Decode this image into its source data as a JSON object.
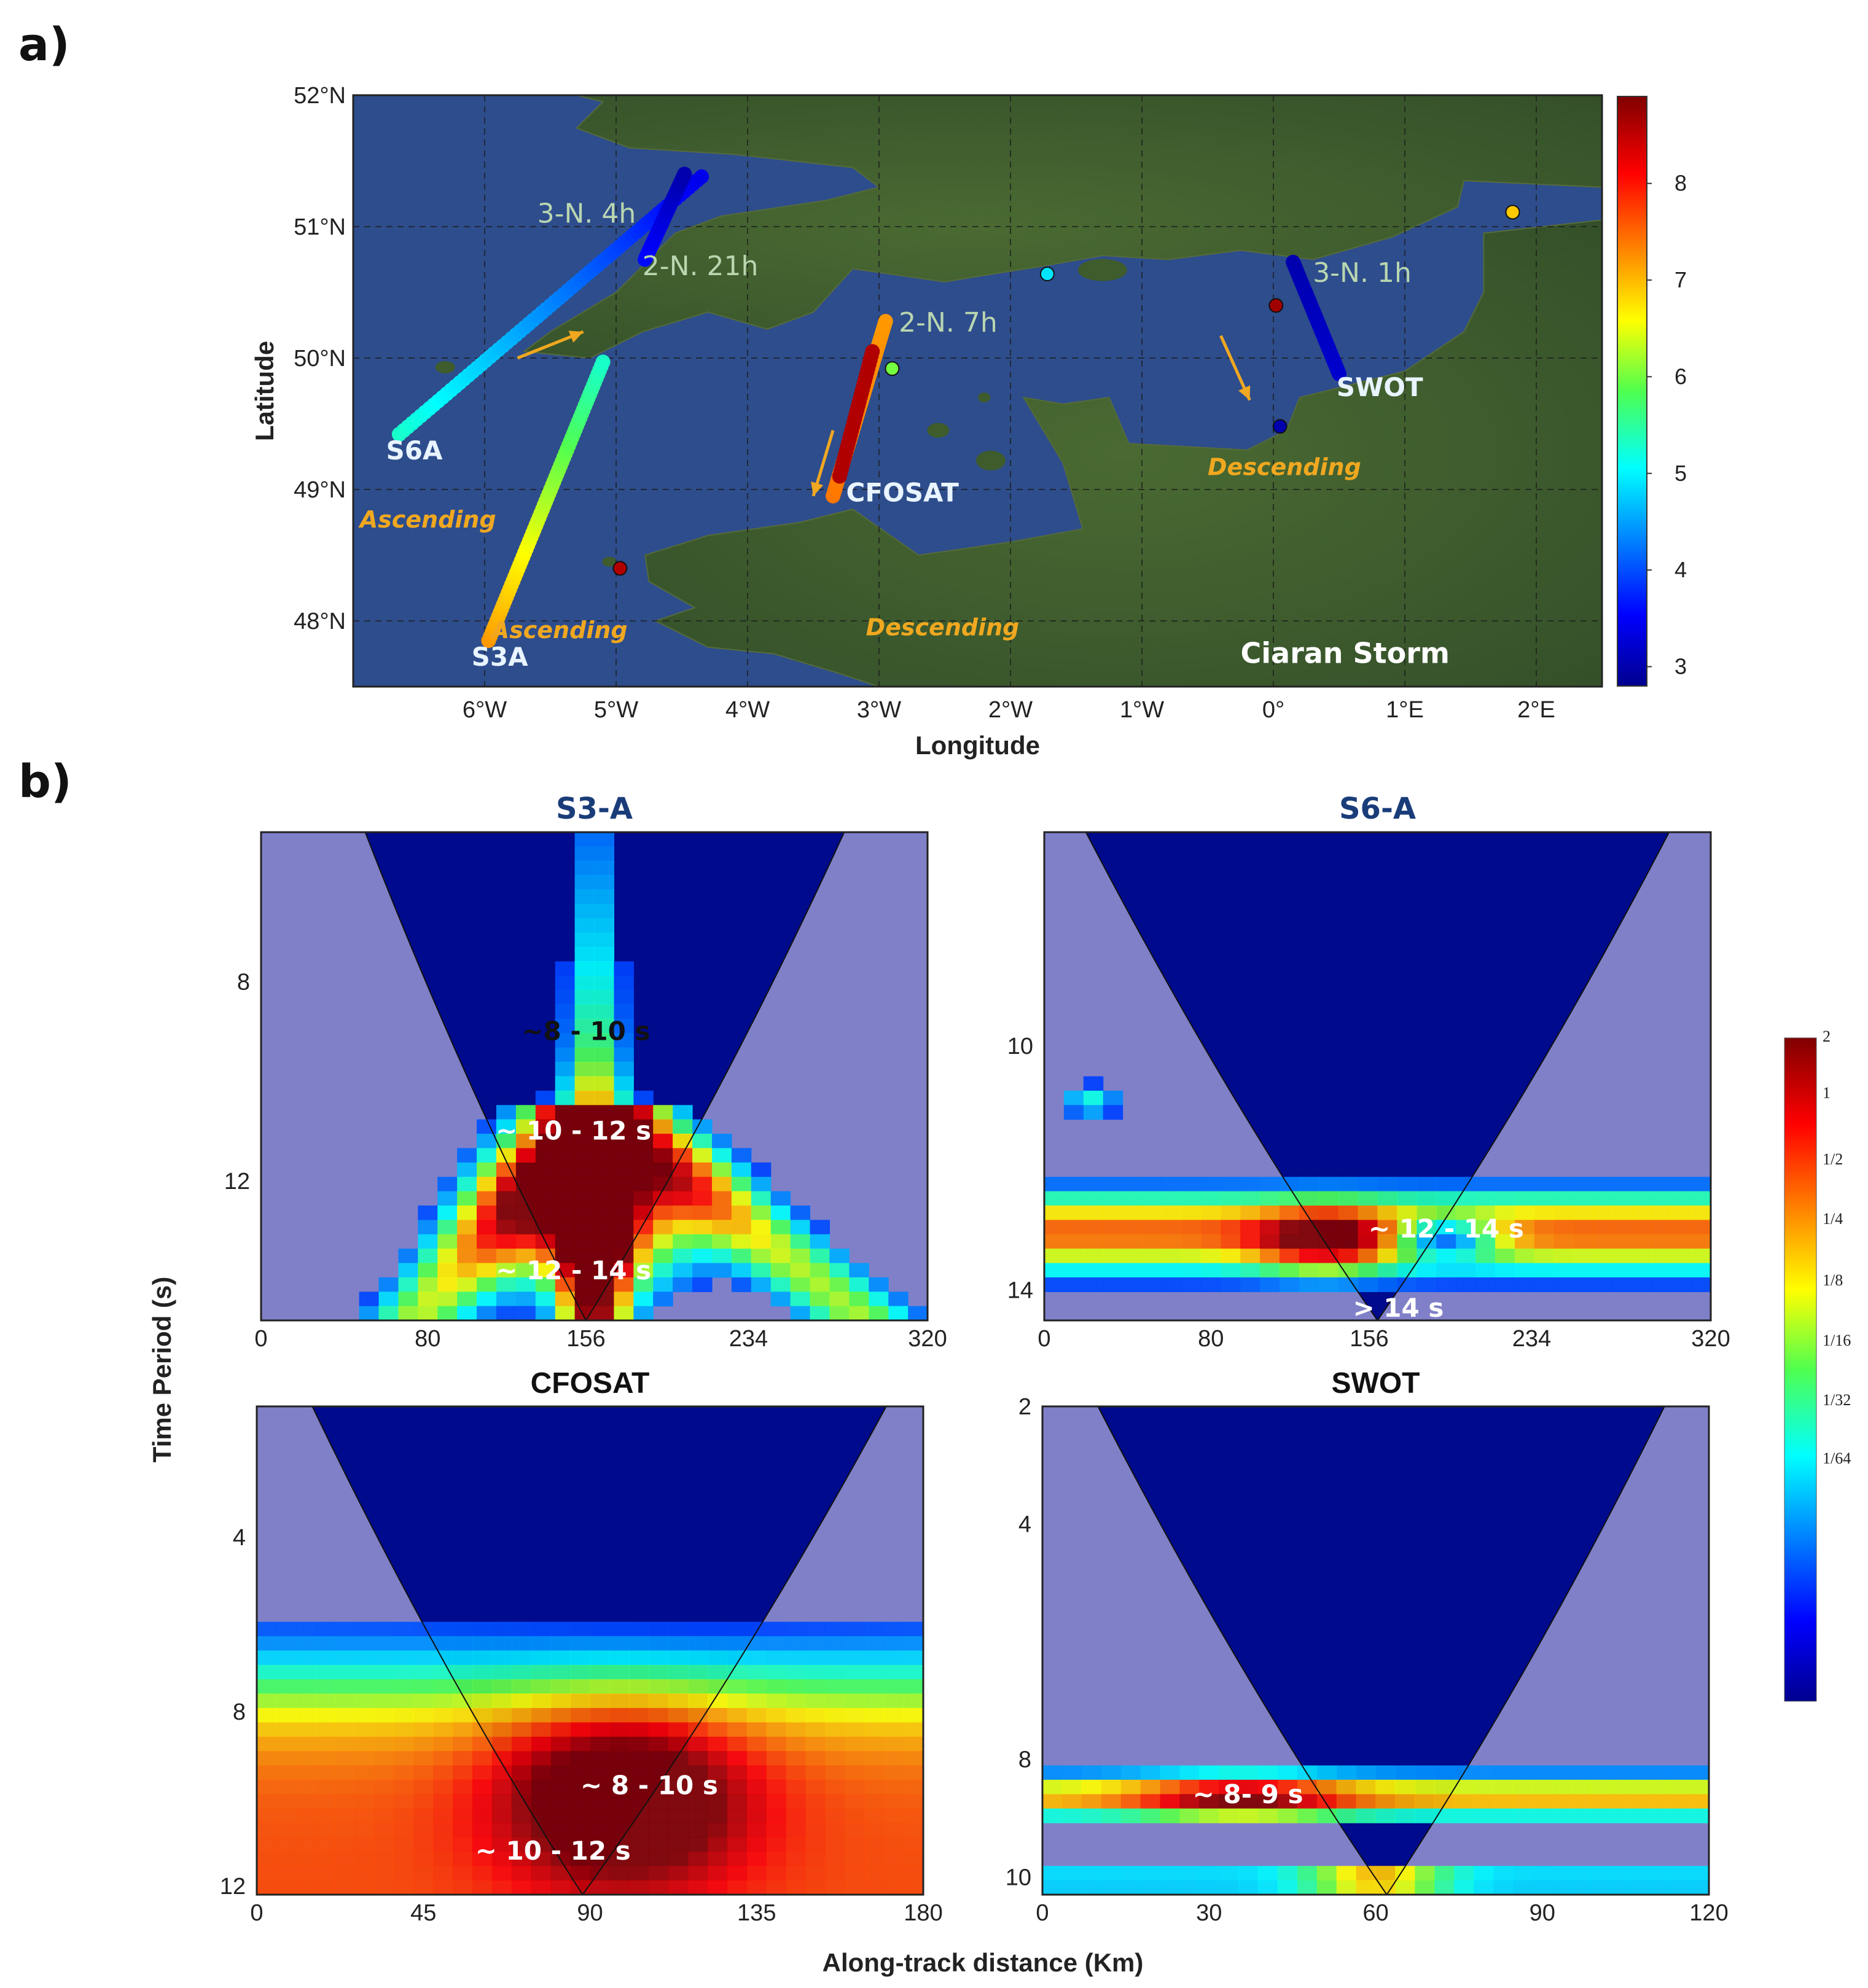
{
  "panel_a_letter": "a)",
  "panel_b_letter": "b)",
  "colors": {
    "ocean": "#2e4d8c",
    "land": "#3d5a2a",
    "wavelet_bg": "#8080c8",
    "coi_inside": "#000a8c",
    "arrow": "#f0a820"
  },
  "chart_data": [
    {
      "type": "scatter",
      "panel": "a",
      "xlabel": "Longitude",
      "ylabel": "Latitude",
      "xlim": [
        -7,
        2.5
      ],
      "ylim": [
        47.5,
        52
      ],
      "x_ticks": [
        {
          "v": -6,
          "t": "6°W"
        },
        {
          "v": -5,
          "t": "5°W"
        },
        {
          "v": -4,
          "t": "4°W"
        },
        {
          "v": -3,
          "t": "3°W"
        },
        {
          "v": -2,
          "t": "2°W"
        },
        {
          "v": -1,
          "t": "1°W"
        },
        {
          "v": 0,
          "t": "0°"
        },
        {
          "v": 1,
          "t": "1°E"
        },
        {
          "v": 2,
          "t": "2°E"
        }
      ],
      "y_ticks": [
        {
          "v": 48,
          "t": "48°N"
        },
        {
          "v": 49,
          "t": "49°N"
        },
        {
          "v": 50,
          "t": "50°N"
        },
        {
          "v": 51,
          "t": "51°N"
        },
        {
          "v": 52,
          "t": "52°N"
        }
      ],
      "grid": true,
      "colorbar": {
        "min": 2.8,
        "max": 8.9,
        "ticks": [
          3,
          4,
          5,
          6,
          7,
          8
        ]
      },
      "tracks": [
        {
          "name": "S6A",
          "start": [
            -6.65,
            49.42
          ],
          "end": [
            -4.35,
            51.38
          ],
          "v_start": 5.3,
          "v_end": 3.4
        },
        {
          "name": "2-N. 21h",
          "start": [
            -4.78,
            50.75
          ],
          "end": [
            -4.48,
            51.4
          ],
          "v_start": 3.6,
          "v_end": 3.0
        },
        {
          "name": "S3A",
          "start": [
            -5.97,
            47.85
          ],
          "end": [
            -5.1,
            49.97
          ],
          "v_start": 7.2,
          "v_end": 5.3
        },
        {
          "name": "CFOSAT",
          "start": [
            -3.35,
            48.95
          ],
          "end": [
            -2.95,
            50.28
          ],
          "v_start": 7.4,
          "v_end": 7.2
        },
        {
          "name": "SWOT",
          "start": [
            0.15,
            50.73
          ],
          "end": [
            0.5,
            49.88
          ],
          "v_start": 3.0,
          "v_end": 3.2
        }
      ],
      "red_segment": {
        "start": [
          -3.3,
          49.1
        ],
        "end": [
          -3.05,
          50.05
        ],
        "v": 8.6
      },
      "buoys": [
        {
          "x": -4.97,
          "y": 48.4,
          "v": 8.6
        },
        {
          "x": -2.9,
          "y": 49.92,
          "v": 6.0
        },
        {
          "x": -1.72,
          "y": 50.64,
          "v": 4.9
        },
        {
          "x": 0.02,
          "y": 50.4,
          "v": 8.7
        },
        {
          "x": 0.05,
          "y": 49.48,
          "v": 3.0
        },
        {
          "x": 1.82,
          "y": 51.11,
          "v": 6.9
        }
      ],
      "track_labels": [
        {
          "text": "S6A",
          "x": -6.75,
          "y": 49.3
        },
        {
          "text": "S3A",
          "x": -6.1,
          "y": 47.73
        },
        {
          "text": "CFOSAT",
          "x": -3.25,
          "y": 48.98
        },
        {
          "text": "SWOT",
          "x": 0.48,
          "y": 49.78
        }
      ],
      "pass_labels": [
        {
          "text": "3-N. 4h",
          "x": -5.6,
          "y": 51.1
        },
        {
          "text": "2-N. 21h",
          "x": -4.8,
          "y": 50.7
        },
        {
          "text": "2-N. 7h",
          "x": -2.85,
          "y": 50.27
        },
        {
          "text": "3-N. 1h",
          "x": 0.3,
          "y": 50.65
        }
      ],
      "direction_labels": [
        {
          "text": "Ascending",
          "x": -6.95,
          "y": 48.77
        },
        {
          "text": "Ascending",
          "x": -5.95,
          "y": 47.93
        },
        {
          "text": "Descending",
          "x": -3.1,
          "y": 47.95
        },
        {
          "text": "Descending",
          "x": -0.5,
          "y": 49.17
        }
      ],
      "storm_label": {
        "text": "Ciaran Storm",
        "x": -0.25,
        "y": 47.75
      }
    },
    {
      "type": "heatmap",
      "title": "S3-A",
      "xlim": [
        0,
        320
      ],
      "ylim": [
        5,
        14.8
      ],
      "x_ticks": [
        0,
        80,
        156,
        234,
        320
      ],
      "y_ticks": [
        8,
        12
      ],
      "coi": {
        "min_x": 156,
        "min_y": 14.8,
        "top_x_left": 50,
        "top_x_right": 280
      },
      "annotations": [
        {
          "text": "~8 - 10 s",
          "x": 156,
          "y": 9.0,
          "dark": true
        },
        {
          "text": "~ 10 - 12 s",
          "x": 150,
          "y": 11.0
        },
        {
          "text": "~ 12 - 14 s",
          "x": 150,
          "y": 13.8
        }
      ]
    },
    {
      "type": "heatmap",
      "title": "S6-A",
      "xlim": [
        0,
        320
      ],
      "ylim": [
        6.5,
        14.5
      ],
      "x_ticks": [
        0,
        80,
        156,
        234,
        320
      ],
      "y_ticks": [
        10,
        14
      ],
      "coi": {
        "min_x": 160,
        "min_y": 14.5,
        "top_x_left": 20,
        "top_x_right": 300
      },
      "annotations": [
        {
          "text": "~ 12 - 14 s",
          "x": 193,
          "y": 13.0
        },
        {
          "text": "> 14 s",
          "x": 170,
          "y": 14.3
        }
      ]
    },
    {
      "type": "heatmap",
      "title": "CFOSAT",
      "xlim": [
        0,
        180
      ],
      "ylim": [
        1,
        12.2
      ],
      "x_ticks": [
        0,
        45,
        90,
        135,
        180
      ],
      "y_ticks": [
        4,
        8,
        12
      ],
      "coi": {
        "min_x": 88,
        "min_y": 12.2,
        "top_x_left": 15,
        "top_x_right": 170
      },
      "annotations": [
        {
          "text": "~ 8 - 10 s",
          "x": 106,
          "y": 9.7
        },
        {
          "text": "~ 10 - 12 s",
          "x": 80,
          "y": 11.2
        }
      ]
    },
    {
      "type": "heatmap",
      "title": "SWOT",
      "xlim": [
        0,
        120
      ],
      "ylim": [
        2,
        10.3
      ],
      "x_ticks": [
        0,
        30,
        60,
        90,
        120
      ],
      "y_ticks": [
        2,
        4,
        8,
        10
      ],
      "coi": {
        "min_x": 62,
        "min_y": 10.3,
        "top_x_left": 10,
        "top_x_right": 112
      },
      "annotations": [
        {
          "text": "~ 8- 9 s",
          "x": 37,
          "y": 8.6
        }
      ]
    }
  ],
  "panel_b": {
    "ylabel": "Time Period (s)",
    "xlabel": "Along-track distance (Km)",
    "colorbar_ticks": [
      "2",
      "1",
      "1/2",
      "1/4",
      "1/8",
      "1/16",
      "1/32",
      "1/64"
    ]
  }
}
